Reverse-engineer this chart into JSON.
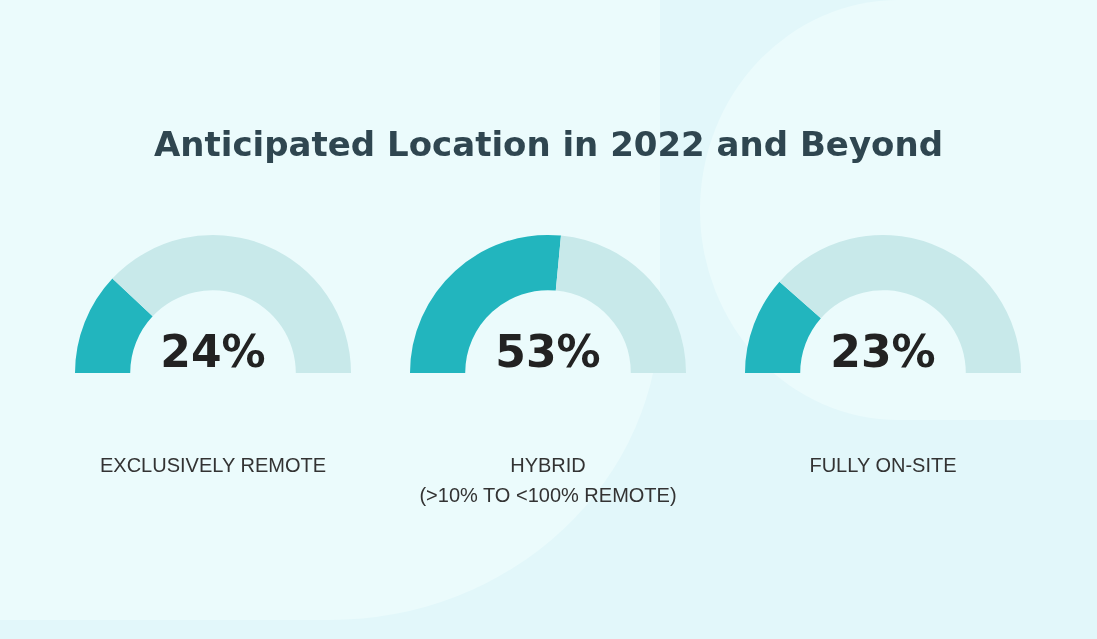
{
  "chart_data": [
    {
      "type": "donut",
      "title": "Anticipated Location in 2022 and Beyond",
      "xlabel": "EXCLUSIVELY REMOTE",
      "categories": [
        null,
        null
      ],
      "values": [
        24,
        76
      ],
      "colors": [
        "#22b5be",
        "#c8e9ea"
      ],
      "annotations": [
        "24%"
      ],
      "legend": false
    },
    {
      "type": "donut",
      "xlabel": "HYBRID\n(>10% TO <100% REMOTE)",
      "categories": [
        null,
        null
      ],
      "values": [
        53,
        47
      ],
      "colors": [
        "#22b5be",
        "#c8e9ea"
      ],
      "annotations": [
        "53%"
      ],
      "legend": false
    },
    {
      "type": "donut",
      "xlabel": "FULLY ON-SITE",
      "categories": [
        null,
        null
      ],
      "values": [
        23,
        77
      ],
      "colors": [
        "#22b5be",
        "#c8e9ea"
      ],
      "annotations": [
        "23%"
      ],
      "legend": false
    }
  ]
}
